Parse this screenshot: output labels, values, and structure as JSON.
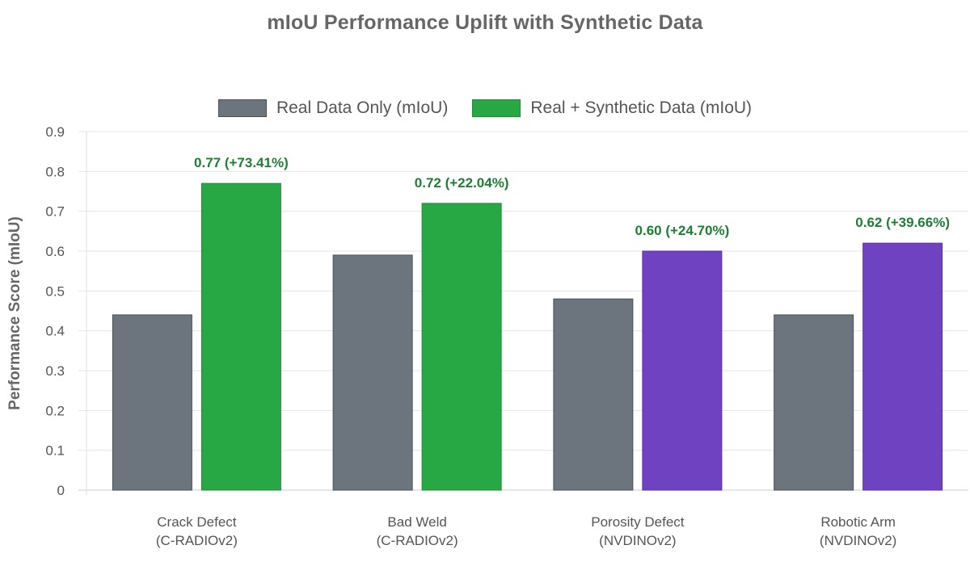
{
  "chart_data": {
    "type": "bar",
    "title": "mIoU Performance Uplift with Synthetic Data",
    "xlabel": "",
    "ylabel": "Performance Score (mIoU)",
    "ylim": [
      0,
      0.9
    ],
    "yticks": [
      "0",
      "0.1",
      "0.2",
      "0.3",
      "0.4",
      "0.5",
      "0.6",
      "0.7",
      "0.8",
      "0.9"
    ],
    "categories": [
      [
        "Crack Defect",
        "(C-RADIOv2)"
      ],
      [
        "Bad Weld",
        "(C-RADIOv2)"
      ],
      [
        "Porosity Defect",
        "(NVDINOv2)"
      ],
      [
        "Robotic Arm",
        "(NVDINOv2)"
      ]
    ],
    "series": [
      {
        "name": "Real Data Only (mIoU)",
        "values": [
          0.44,
          0.59,
          0.48,
          0.44
        ],
        "colors": [
          "#6c757d",
          "#6c757d",
          "#6c757d",
          "#6c757d"
        ]
      },
      {
        "name": "Real + Synthetic Data (mIoU)",
        "values": [
          0.77,
          0.72,
          0.6,
          0.62
        ],
        "colors": [
          "#28a745",
          "#28a745",
          "#6f42c1",
          "#6f42c1"
        ],
        "labels": [
          "0.77 (+73.41%)",
          "0.72 (+22.04%)",
          "0.60 (+24.70%)",
          "0.62 (+39.66%)"
        ]
      }
    ],
    "legend_position": "top-center",
    "grid": true,
    "colors": {
      "title": "#666666",
      "axis_text": "#555555",
      "grid": "#e6e6e6",
      "label": "#1e7e34",
      "real": "#6c757d",
      "synthetic": "#28a745",
      "synthetic_alt": "#6f42c1"
    }
  }
}
